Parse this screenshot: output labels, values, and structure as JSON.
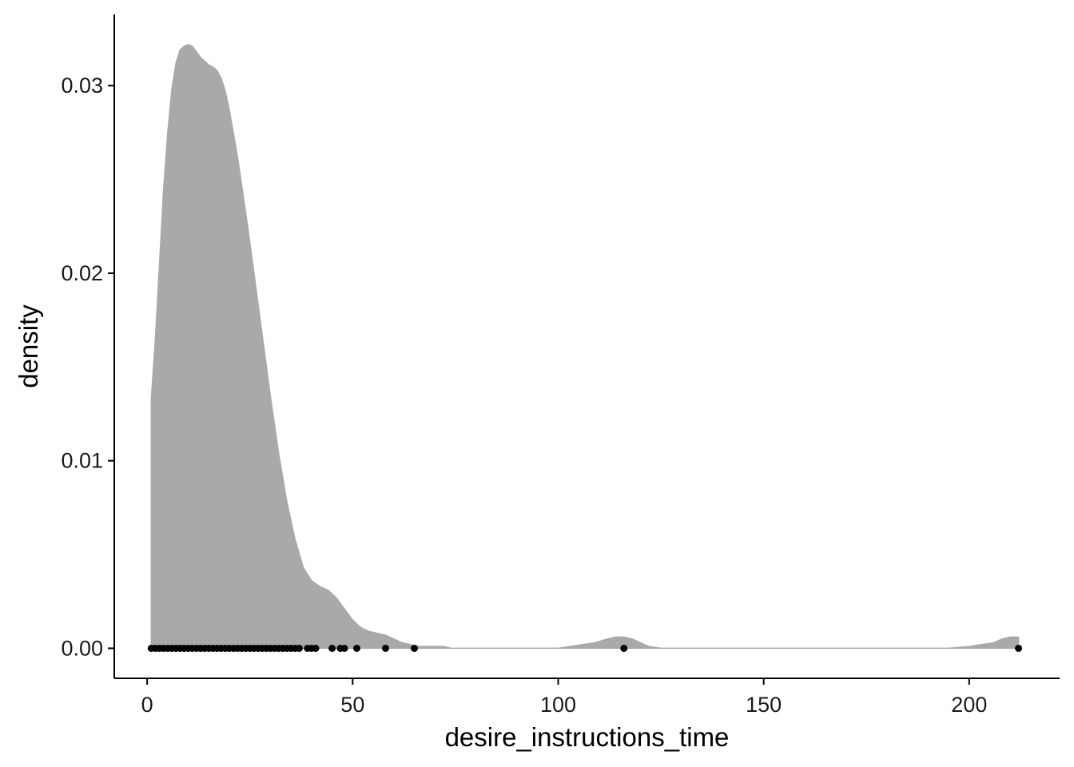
{
  "chart_data": {
    "type": "area",
    "subtype": "density",
    "xlabel": "desire_instructions_time",
    "ylabel": "density",
    "xlim": [
      -8,
      222
    ],
    "ylim": [
      -0.0016,
      0.0338
    ],
    "x_ticks": [
      0,
      50,
      100,
      150,
      200
    ],
    "x_tick_labels": [
      "0",
      "50",
      "100",
      "150",
      "200"
    ],
    "y_ticks": [
      0,
      0.01,
      0.02,
      0.03
    ],
    "y_tick_labels": [
      "0.00",
      "0.01",
      "0.02",
      "0.03"
    ],
    "grid": false,
    "legend": "none",
    "colors": {
      "fill": "#a9a9a9",
      "points": "#000000",
      "axis": "#000000"
    },
    "density_curve": {
      "x": [
        1,
        2,
        3,
        4,
        5,
        6,
        7,
        8,
        9,
        10,
        11,
        12,
        13,
        14,
        15,
        16,
        17,
        18,
        19,
        20,
        22,
        24,
        26,
        28,
        30,
        32,
        34,
        36,
        38,
        40,
        42,
        44,
        46,
        48,
        50,
        52,
        54,
        56,
        58,
        60,
        62,
        64,
        66,
        68,
        70,
        72,
        74,
        76,
        80,
        90,
        100,
        103,
        106,
        109,
        112,
        114,
        116,
        118,
        120,
        122,
        125,
        128,
        132,
        140,
        160,
        180,
        195,
        200,
        203,
        206,
        208,
        210,
        212
      ],
      "y": [
        0.0133,
        0.0165,
        0.0205,
        0.0245,
        0.0275,
        0.0298,
        0.0312,
        0.0319,
        0.0321,
        0.0322,
        0.0321,
        0.0318,
        0.0315,
        0.0313,
        0.0311,
        0.031,
        0.0308,
        0.0304,
        0.0297,
        0.0287,
        0.0262,
        0.0232,
        0.02,
        0.0167,
        0.0134,
        0.0104,
        0.0078,
        0.0058,
        0.0043,
        0.0036,
        0.0033,
        0.0031,
        0.0027,
        0.0021,
        0.0015,
        0.0011,
        0.0009,
        0.0008,
        0.0007,
        0.0005,
        0.0003,
        0.0002,
        0.0001,
        0.0001,
        0.0001,
        0.0001,
        0.0,
        0.0,
        0.0,
        0.0,
        0.0,
        0.0001,
        0.0002,
        0.0003,
        0.0005,
        0.0006,
        0.0006,
        0.0005,
        0.0003,
        0.0001,
        0.0,
        0.0,
        0.0,
        0.0,
        0.0,
        0.0,
        0.0,
        0.0001,
        0.0002,
        0.0003,
        0.0005,
        0.0006,
        0.0006
      ]
    },
    "rug_points": {
      "x": [
        1,
        2,
        3,
        4,
        5,
        6,
        7,
        8,
        9,
        10,
        11,
        12,
        13,
        14,
        15,
        16,
        17,
        18,
        19,
        20,
        21,
        22,
        23,
        24,
        25,
        26,
        27,
        28,
        29,
        30,
        31,
        32,
        33,
        34,
        35,
        36,
        37,
        39,
        40,
        41,
        45,
        47,
        48,
        51,
        58,
        65,
        116,
        212
      ],
      "y": 0
    }
  }
}
